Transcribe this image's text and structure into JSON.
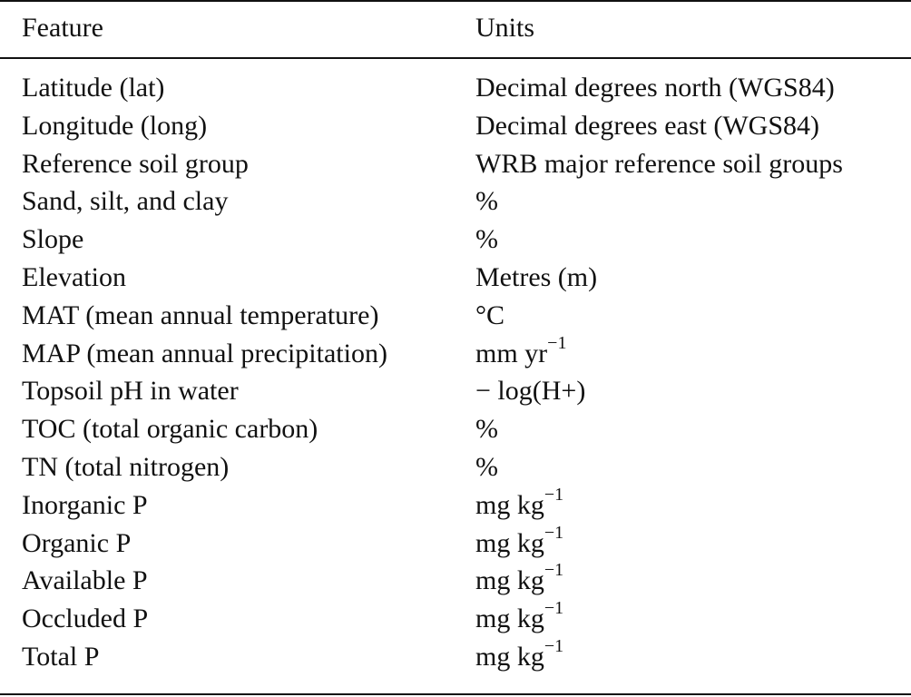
{
  "table": {
    "headers": {
      "feature": "Feature",
      "units": "Units"
    },
    "rows": [
      {
        "feature": "Latitude (lat)",
        "units": "Decimal degrees north (WGS84)",
        "sup": ""
      },
      {
        "feature": "Longitude (long)",
        "units": "Decimal degrees east (WGS84)",
        "sup": ""
      },
      {
        "feature": "Reference soil group",
        "units": "WRB major reference soil groups",
        "sup": ""
      },
      {
        "feature": "Sand, silt, and clay",
        "units": "%",
        "sup": ""
      },
      {
        "feature": "Slope",
        "units": "%",
        "sup": ""
      },
      {
        "feature": "Elevation",
        "units": "Metres (m)",
        "sup": ""
      },
      {
        "feature": "MAT (mean annual temperature)",
        "units": "°C",
        "sup": ""
      },
      {
        "feature": "MAP (mean annual precipitation)",
        "units": "mm yr",
        "sup": "−1"
      },
      {
        "feature": "Topsoil pH in water",
        "units": "− log(H+)",
        "sup": ""
      },
      {
        "feature": "TOC (total organic carbon)",
        "units": "%",
        "sup": ""
      },
      {
        "feature": "TN (total nitrogen)",
        "units": "%",
        "sup": ""
      },
      {
        "feature": "Inorganic P",
        "units": "mg kg",
        "sup": "−1"
      },
      {
        "feature": "Organic P",
        "units": "mg kg",
        "sup": "−1"
      },
      {
        "feature": "Available P",
        "units": "mg kg",
        "sup": "−1"
      },
      {
        "feature": "Occluded P",
        "units": "mg kg",
        "sup": "−1"
      },
      {
        "feature": "Total P",
        "units": "mg kg",
        "sup": "−1"
      }
    ]
  }
}
